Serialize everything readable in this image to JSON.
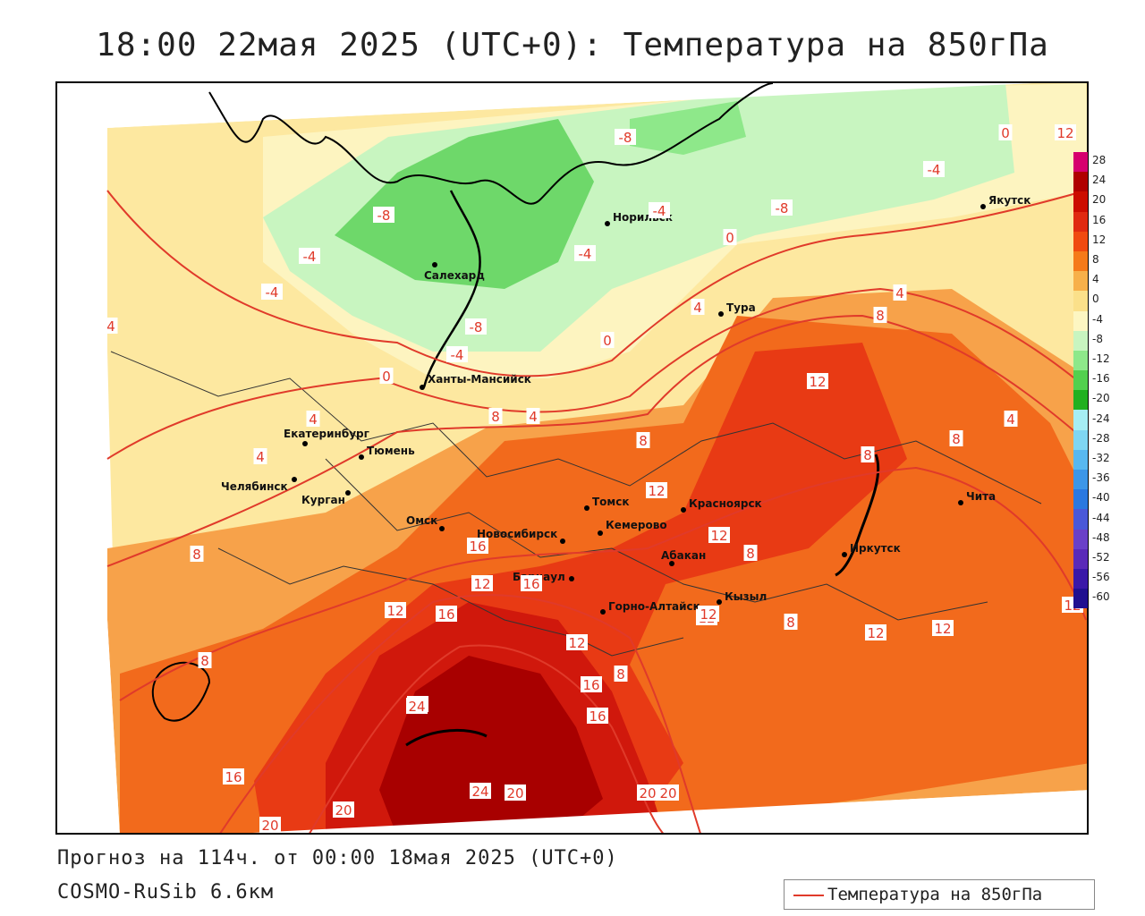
{
  "title": "18:00 22мая 2025 (UTC+0): Температура на 850гПа",
  "footer": {
    "forecast": "Прогноз на 114ч. от 00:00 18мая 2025 (UTC+0)",
    "model": "COSMO-RuSib 6.6км"
  },
  "legend": {
    "label": "Температура на 850гПа",
    "line_color": "#e03a2a"
  },
  "colorbar": {
    "ticks": [
      "28",
      "24",
      "20",
      "16",
      "12",
      "8",
      "4",
      "0",
      "-4",
      "-8",
      "-12",
      "-16",
      "-20",
      "-24",
      "-28",
      "-32",
      "-36",
      "-40",
      "-44",
      "-48",
      "-52",
      "-56",
      "-60"
    ],
    "colors": [
      "#d6006e",
      "#b00000",
      "#cc0d00",
      "#e02a10",
      "#f04a10",
      "#f57a1a",
      "#f7b04a",
      "#fbe08a",
      "#fdf6c2",
      "#c8f5c0",
      "#8ee88a",
      "#52d04e",
      "#20b020",
      "#a6eef4",
      "#7fd6f2",
      "#58b8f0",
      "#3c96e8",
      "#2a78e0",
      "#4a58d8",
      "#6a40c8",
      "#5a2ab8",
      "#3a18a8",
      "#201090"
    ]
  },
  "cities": [
    {
      "name": "Якутск"
    },
    {
      "name": "Норильск"
    },
    {
      "name": "Салехард"
    },
    {
      "name": "Тура"
    },
    {
      "name": "Ханты-Мансийск"
    },
    {
      "name": "Екатеринбург"
    },
    {
      "name": "Тюмень"
    },
    {
      "name": "Челябинск"
    },
    {
      "name": "Курган"
    },
    {
      "name": "Омск"
    },
    {
      "name": "Новосибирск"
    },
    {
      "name": "Томск"
    },
    {
      "name": "Кемерово"
    },
    {
      "name": "Красноярск"
    },
    {
      "name": "Абакан"
    },
    {
      "name": "Барнаул"
    },
    {
      "name": "Горно-Алтайск"
    },
    {
      "name": "Кызыл"
    },
    {
      "name": "Иркутск"
    },
    {
      "name": "Чита"
    }
  ],
  "contour_labels": [
    "-8",
    "-8",
    "-4",
    "-4",
    "-4",
    "-8",
    "-4",
    "-4",
    "-8",
    "-4",
    "0",
    "0",
    "0",
    "0",
    "4",
    "4",
    "4",
    "4",
    "4",
    "4",
    "4",
    "8",
    "8",
    "8",
    "8",
    "8",
    "8",
    "8",
    "8",
    "8",
    "8",
    "12",
    "12",
    "12",
    "12",
    "12",
    "12",
    "12",
    "12",
    "12",
    "12",
    "12",
    "12",
    "16",
    "16",
    "16",
    "16",
    "16",
    "16",
    "20",
    "20",
    "20",
    "20",
    "20",
    "20",
    "24",
    "24"
  ]
}
